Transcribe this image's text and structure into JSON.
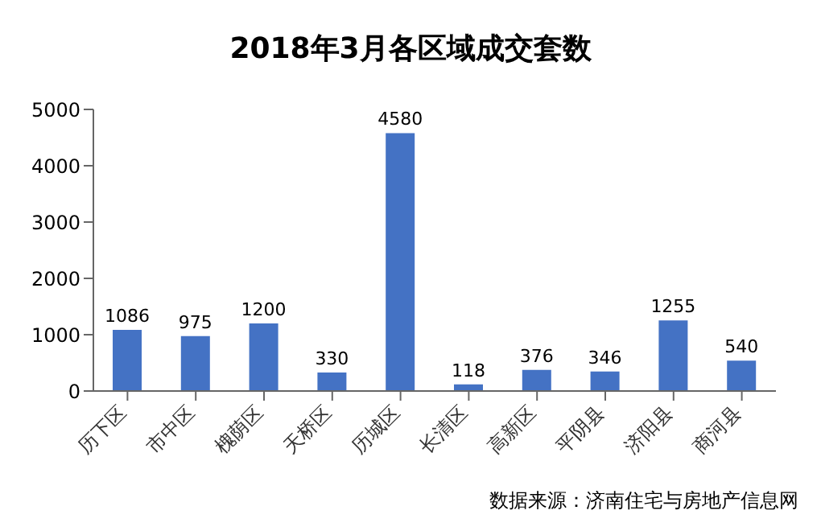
{
  "chart_data": {
    "type": "bar",
    "title": "2018年3月各区域成交套数",
    "categories": [
      "历下区",
      "市中区",
      "槐荫区",
      "天桥区",
      "历城区",
      "长清区",
      "高新区",
      "平阴县",
      "济阳县",
      "商河县"
    ],
    "values": [
      1086,
      975,
      1200,
      330,
      4580,
      118,
      376,
      346,
      1255,
      540
    ],
    "color": "#4472c4",
    "ylim": [
      0,
      5000
    ],
    "yticks": [
      0,
      1000,
      2000,
      3000,
      4000,
      5000
    ],
    "grid": false,
    "data_labels": true,
    "annotations": [
      "数据来源：济南住宅与房地产信息网"
    ]
  }
}
